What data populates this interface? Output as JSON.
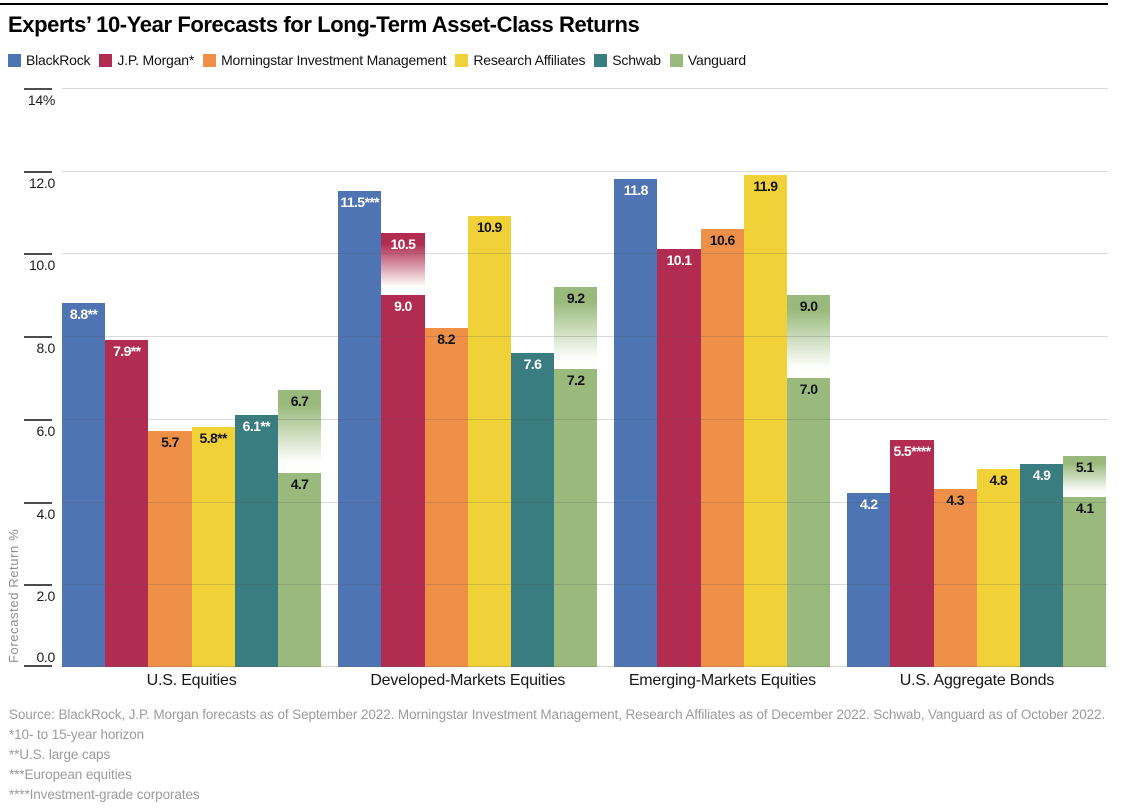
{
  "chart_data": {
    "type": "bar",
    "title": "Experts’ 10-Year Forecasts for Long-Term Asset-Class Returns",
    "ylabel": "Forecasted Return %",
    "ylim": [
      0,
      14
    ],
    "grid": true,
    "legend_position": "top",
    "yticks": [
      {
        "value": 0,
        "label": "0.0"
      },
      {
        "value": 2,
        "label": "2.0"
      },
      {
        "value": 4,
        "label": "4.0"
      },
      {
        "value": 6,
        "label": "6.0"
      },
      {
        "value": 8,
        "label": "8.0"
      },
      {
        "value": 10,
        "label": "10.0"
      },
      {
        "value": 12,
        "label": "12.0"
      },
      {
        "value": 14,
        "label": "14%"
      }
    ],
    "categories": [
      "U.S. Equities",
      "Developed-Markets Equities",
      "Emerging-Markets Equities",
      "U.S. Aggregate Bonds"
    ],
    "series": [
      {
        "name": "BlackRock",
        "color": "#4F74B4",
        "value_text_color": "#ffffff",
        "bars": [
          {
            "value": 8.8,
            "label": "8.8**"
          },
          {
            "value": 11.5,
            "label": "11.5***"
          },
          {
            "value": 11.8,
            "label": "11.8"
          },
          {
            "value": 4.2,
            "label": "4.2"
          }
        ]
      },
      {
        "name": "J.P. Morgan*",
        "color": "#B22C52",
        "value_text_color": "#ffffff",
        "bars": [
          {
            "value": 7.9,
            "label": "7.9**"
          },
          {
            "low": 9.0,
            "high": 10.5,
            "label_high": "10.5",
            "label_low": "9.0"
          },
          {
            "value": 10.1,
            "label": "10.1"
          },
          {
            "value": 5.5,
            "label": "5.5****"
          }
        ]
      },
      {
        "name": "Morningstar Investment Management",
        "color": "#EF9048",
        "value_text_color": "#121212",
        "bars": [
          {
            "value": 5.7,
            "label": "5.7"
          },
          {
            "value": 8.2,
            "label": "8.2"
          },
          {
            "value": 10.6,
            "label": "10.6"
          },
          {
            "value": 4.3,
            "label": "4.3"
          }
        ]
      },
      {
        "name": "Research Affiliates",
        "color": "#F1D138",
        "value_text_color": "#121212",
        "bars": [
          {
            "value": 5.8,
            "label": "5.8**"
          },
          {
            "value": 10.9,
            "label": "10.9"
          },
          {
            "value": 11.9,
            "label": "11.9"
          },
          {
            "value": 4.8,
            "label": "4.8"
          }
        ]
      },
      {
        "name": "Schwab",
        "color": "#3A7D80",
        "value_text_color": "#ffffff",
        "bars": [
          {
            "value": 6.1,
            "label": "6.1**"
          },
          {
            "value": 7.6,
            "label": "7.6"
          },
          null,
          {
            "value": 4.9,
            "label": "4.9"
          }
        ]
      },
      {
        "name": "Vanguard",
        "color": "#99BA7C",
        "value_text_color": "#121212",
        "bars": [
          {
            "low": 4.7,
            "high": 6.7,
            "label_high": "6.7",
            "label_low": "4.7"
          },
          {
            "low": 7.2,
            "high": 9.2,
            "label_high": "9.2",
            "label_low": "7.2"
          },
          {
            "low": 7.0,
            "high": 9.0,
            "label_high": "9.0",
            "label_low": "7.0"
          },
          {
            "low": 4.1,
            "high": 5.1,
            "label_high": "5.1",
            "label_low": "4.1"
          }
        ]
      }
    ],
    "footnotes": [
      "Source: BlackRock, J.P. Morgan forecasts as of September 2022. Morningstar Investment Management, Research Affiliates as of December 2022. Schwab, Vanguard as of October 2022.",
      "*10- to 15-year horizon",
      "**U.S. large caps",
      "***European equities",
      "****Investment-grade corporates"
    ]
  }
}
